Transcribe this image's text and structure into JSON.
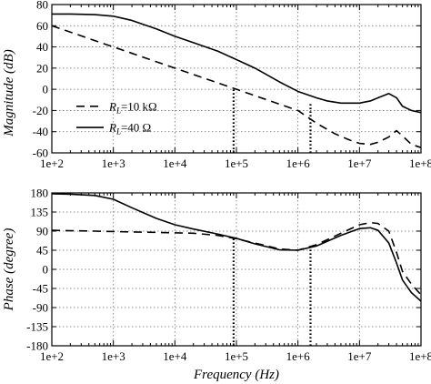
{
  "chart_data": [
    {
      "type": "line",
      "ylabel": "Magnitude (dB)",
      "xlabel": "",
      "xscale": "log",
      "xlim": [
        100,
        100000000
      ],
      "ylim": [
        -60,
        80
      ],
      "x_tick_labels": [
        "1e+2",
        "1e+3",
        "1e+4",
        "1e+5",
        "1e+6",
        "1e+7",
        "1e+8"
      ],
      "y_ticks": [
        -60,
        -40,
        -20,
        0,
        20,
        40,
        60,
        80
      ],
      "grid": true,
      "legend_position": "left",
      "series": [
        {
          "name": "R_L=10 kΩ",
          "line_style": "dashed",
          "color": "#000000",
          "x": [
            100,
            200,
            500,
            1000,
            2000,
            5000,
            10000,
            20000,
            50000,
            100000,
            200000,
            500000,
            1000000,
            2000000,
            4000000,
            7000000,
            10000000,
            15000000,
            20000000,
            30000000,
            40000000,
            50000000,
            70000000,
            100000000
          ],
          "y": [
            60,
            54,
            46,
            40,
            34,
            26,
            20,
            14,
            6,
            0,
            -6,
            -14,
            -20,
            -32,
            -42,
            -48,
            -51,
            -52,
            -50,
            -45,
            -39,
            -44,
            -52,
            -55
          ]
        },
        {
          "name": "R_L=40 Ω",
          "line_style": "solid",
          "color": "#000000",
          "x": [
            100,
            200,
            500,
            1000,
            2000,
            5000,
            10000,
            20000,
            50000,
            100000,
            200000,
            500000,
            1000000,
            2000000,
            3000000,
            5000000,
            10000000,
            15000000,
            20000000,
            30000000,
            40000000,
            50000000,
            70000000,
            100000000
          ],
          "y": [
            71,
            71,
            70.5,
            69,
            65,
            57,
            50,
            44,
            36,
            28,
            20,
            7,
            -2,
            -8,
            -11,
            -13,
            -13,
            -11,
            -8,
            -4,
            -8,
            -16,
            -20,
            -22
          ]
        }
      ],
      "annotations": [
        {
          "type": "vertical_dotted_line",
          "x": 90000,
          "y_from": -60,
          "y_to": 0
        },
        {
          "type": "vertical_dotted_line",
          "x": 1600000,
          "y_from": -60,
          "y_to": -13
        }
      ],
      "legend": {
        "entries": [
          {
            "prefix": "R",
            "subscript": "L",
            "suffix": "=10 kΩ",
            "line_style": "dashed"
          },
          {
            "prefix": "R",
            "subscript": "L",
            "suffix": "=40 Ω",
            "line_style": "solid"
          }
        ]
      }
    },
    {
      "type": "line",
      "ylabel": "Phase (degree)",
      "xlabel": "Frequency (Hz)",
      "xscale": "log",
      "xlim": [
        100,
        100000000
      ],
      "ylim": [
        -180,
        180
      ],
      "x_tick_labels": [
        "1e+2",
        "1e+3",
        "1e+4",
        "1e+5",
        "1e+6",
        "1e+7",
        "1e+8"
      ],
      "y_ticks": [
        -180,
        -135,
        -90,
        -45,
        0,
        45,
        90,
        135,
        180
      ],
      "grid": true,
      "series": [
        {
          "name": "R_L=10 kΩ",
          "line_style": "dashed",
          "color": "#000000",
          "x": [
            100,
            200,
            500,
            1000,
            2000,
            5000,
            10000,
            20000,
            50000,
            100000,
            200000,
            500000,
            1000000,
            2000000,
            5000000,
            10000000,
            15000000,
            20000000,
            30000000,
            40000000,
            50000000,
            70000000,
            100000000
          ],
          "y": [
            92,
            91,
            90,
            89,
            88,
            87,
            86,
            85,
            80,
            72,
            62,
            48,
            45,
            58,
            85,
            105,
            110,
            108,
            90,
            40,
            -5,
            -35,
            -60
          ]
        },
        {
          "name": "R_L=40 Ω",
          "line_style": "solid",
          "color": "#000000",
          "x": [
            100,
            200,
            500,
            1000,
            2000,
            5000,
            10000,
            20000,
            50000,
            100000,
            200000,
            500000,
            1000000,
            2000000,
            5000000,
            10000000,
            15000000,
            20000000,
            30000000,
            40000000,
            50000000,
            70000000,
            100000000
          ],
          "y": [
            178,
            177,
            174,
            165,
            145,
            120,
            105,
            95,
            83,
            73,
            60,
            46,
            45,
            55,
            80,
            96,
            98,
            92,
            62,
            15,
            -25,
            -55,
            -75
          ]
        }
      ],
      "annotations": [
        {
          "type": "vertical_dotted_line",
          "x": 90000,
          "y_from": -180,
          "y_to": 72
        },
        {
          "type": "vertical_dotted_line",
          "x": 1600000,
          "y_from": -180,
          "y_to": 56
        }
      ]
    }
  ]
}
